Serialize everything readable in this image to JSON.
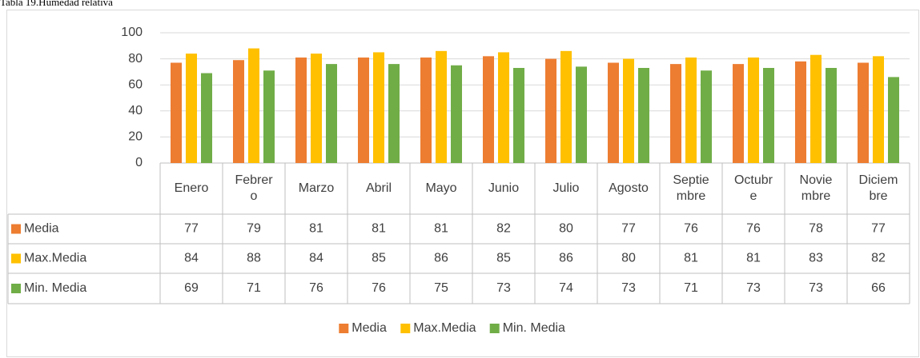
{
  "chart_data": {
    "type": "bar",
    "title": "Tabla 19.Humedad relativa",
    "categories": [
      "Enero",
      "Febrero",
      "Marzo",
      "Abril",
      "Mayo",
      "Junio",
      "Julio",
      "Agosto",
      "Septiembre",
      "Octubre",
      "Noviembre",
      "Diciembre"
    ],
    "series": [
      {
        "name": "Media",
        "color": "#ed7d31",
        "values": [
          77,
          79,
          81,
          81,
          81,
          82,
          80,
          77,
          76,
          76,
          78,
          77
        ]
      },
      {
        "name": "Max.Media",
        "color": "#ffc000",
        "values": [
          84,
          88,
          84,
          85,
          86,
          85,
          86,
          80,
          81,
          81,
          83,
          82
        ]
      },
      {
        "name": "Min. Media",
        "color": "#70ad47",
        "values": [
          69,
          71,
          76,
          76,
          75,
          73,
          74,
          73,
          71,
          73,
          73,
          66
        ]
      }
    ],
    "ylim": [
      0,
      100
    ],
    "yticks": [
      0,
      20,
      40,
      60,
      80,
      100
    ],
    "grid": true,
    "legend": "bottom"
  }
}
